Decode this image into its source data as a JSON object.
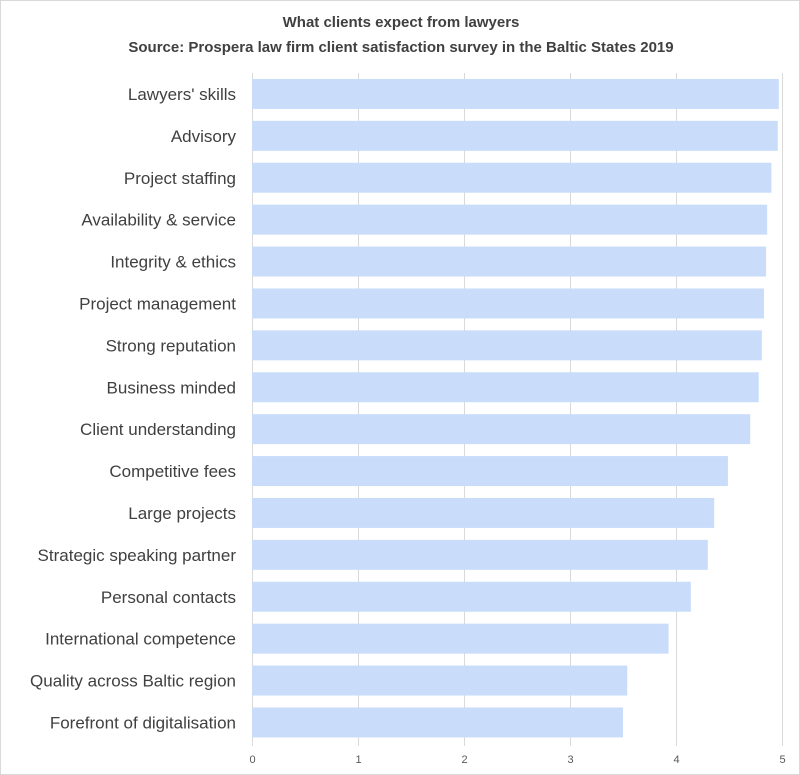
{
  "chart_data": {
    "type": "bar",
    "orientation": "horizontal",
    "title": "What clients expect from lawyers",
    "subtitle": "Source: Prospera law firm client satisfaction survey in the Baltic States 2019",
    "categories": [
      "Lawyers' skills",
      "Advisory",
      "Project staffing",
      "Availability & service",
      "Integrity & ethics",
      "Project management",
      "Strong reputation",
      "Business minded",
      "Client understanding",
      "Competitive fees",
      "Large projects",
      "Strategic speaking partner",
      "Personal contacts",
      "International competence",
      "Quality across Baltic region",
      "Forefront of digitalisation"
    ],
    "values": [
      4.97,
      4.96,
      4.9,
      4.86,
      4.85,
      4.83,
      4.81,
      4.78,
      4.7,
      4.49,
      4.36,
      4.3,
      4.14,
      3.93,
      3.54,
      3.5
    ],
    "xlim": [
      0,
      5
    ],
    "xticks": [
      "0",
      "1",
      "2",
      "3",
      "4",
      "5"
    ],
    "grid": true,
    "legend": "none",
    "bar_color": "#c9ddfb",
    "gridline_color": "#d9d9d9",
    "text_color": "#404040"
  }
}
